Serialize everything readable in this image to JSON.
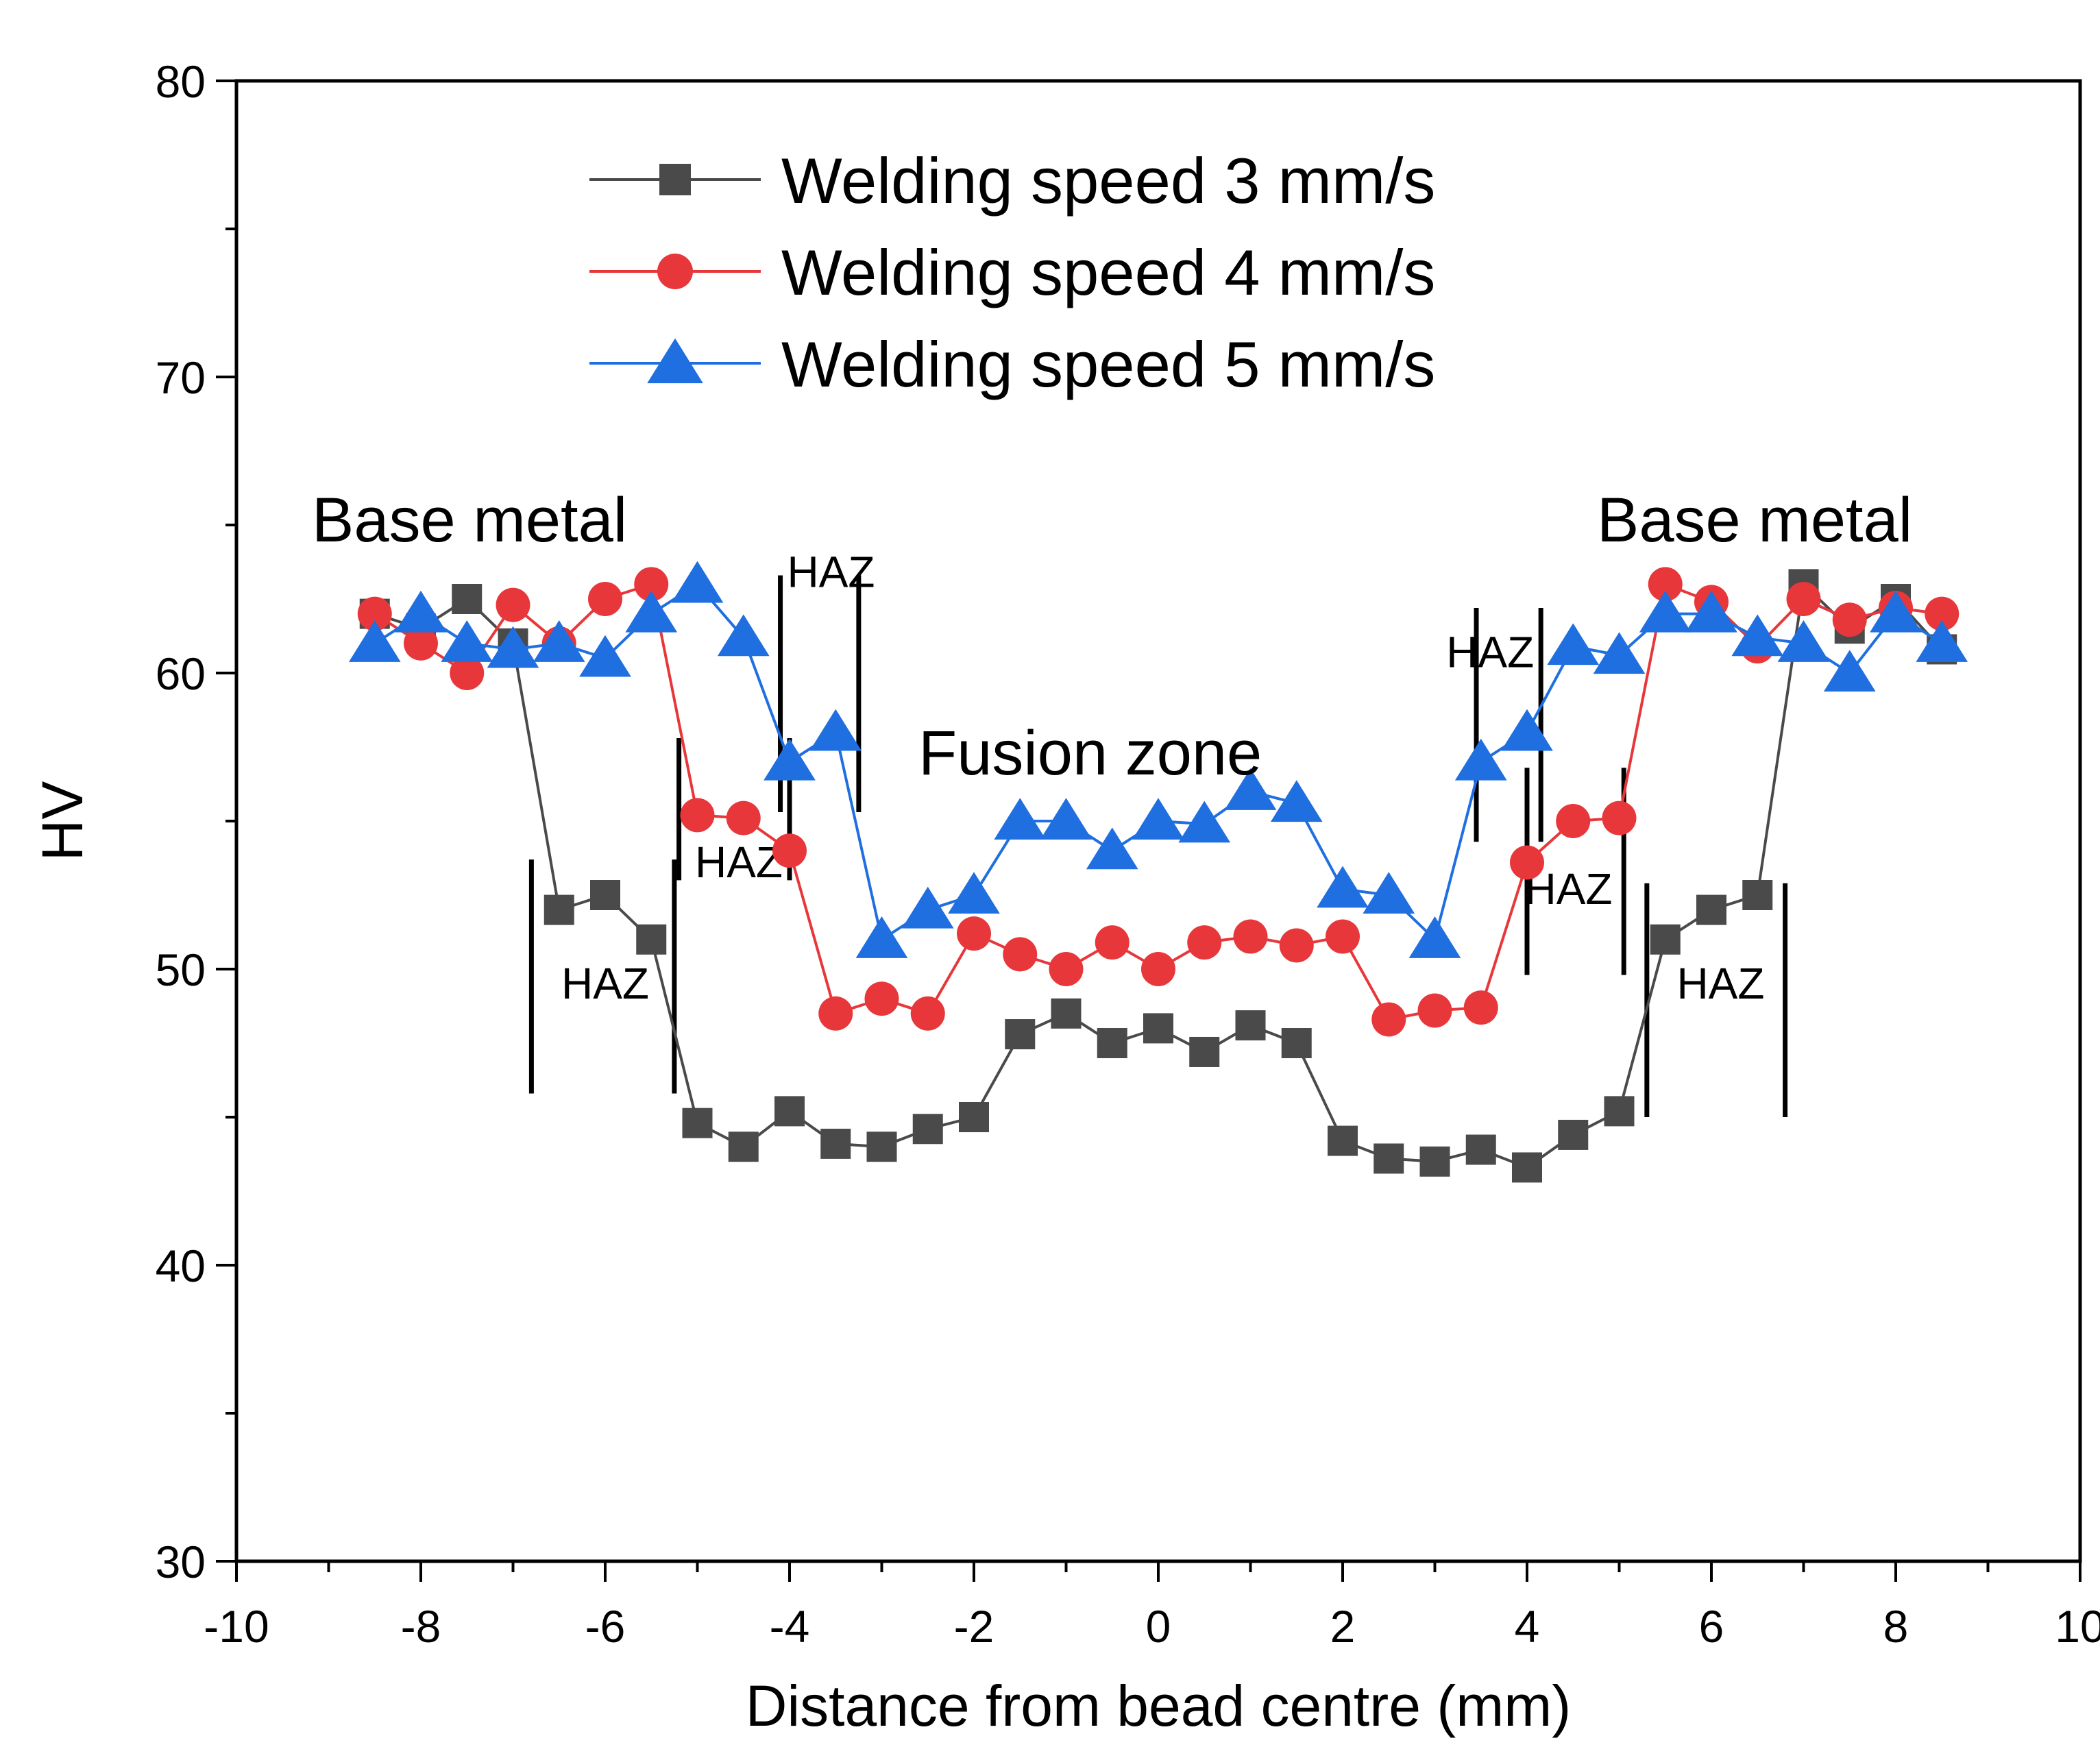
{
  "chart_data": {
    "type": "line",
    "title": "",
    "xlabel": "Distance from bead centre (mm)",
    "ylabel": "HV",
    "xlim": [
      -10,
      10
    ],
    "ylim": [
      30,
      80
    ],
    "xticks": [
      -10,
      -8,
      -6,
      -4,
      -2,
      0,
      2,
      4,
      6,
      8,
      10
    ],
    "yticks": [
      30,
      40,
      50,
      60,
      70,
      80
    ],
    "x": [
      -8.5,
      -8,
      -7.5,
      -7,
      -6.5,
      -6,
      -5.5,
      -5,
      -4.5,
      -4,
      -3.5,
      -3,
      -2.5,
      -2,
      -1.5,
      -1,
      -0.5,
      0,
      0.5,
      1,
      1.5,
      2,
      2.5,
      3,
      3.5,
      4,
      4.5,
      5,
      5.5,
      6,
      6.5,
      7,
      7.5,
      8,
      8.5
    ],
    "series": [
      {
        "name": "Welding speed 3 mm/s",
        "color": "#4a4a4a",
        "marker": "square",
        "values": [
          62,
          61.5,
          62.5,
          61,
          52,
          52.5,
          51,
          44.8,
          44,
          45.2,
          44.1,
          44,
          44.6,
          45,
          47.8,
          48.5,
          47.5,
          48,
          47.2,
          48.1,
          47.5,
          44.2,
          43.6,
          43.5,
          43.9,
          43.3,
          44.4,
          45.2,
          51,
          52,
          52.5,
          63,
          61.5,
          62.5,
          60.8
        ]
      },
      {
        "name": "Welding speed 4 mm/s",
        "color": "#e8373a",
        "marker": "circle",
        "values": [
          62,
          61,
          60,
          62.3,
          61,
          62.5,
          63,
          55.2,
          55.1,
          54,
          48.5,
          49,
          48.5,
          51.2,
          50.5,
          50,
          50.9,
          50,
          50.9,
          51.1,
          50.8,
          51.1,
          48.3,
          48.6,
          48.7,
          53.6,
          55,
          55.1,
          63,
          62.4,
          60.9,
          62.5,
          61.8,
          62.2,
          62
        ]
      },
      {
        "name": "Welding speed 5 mm/s",
        "color": "#1f6fe0",
        "marker": "triangle",
        "values": [
          61,
          62,
          61,
          60.8,
          61,
          60.5,
          62,
          63,
          61.2,
          57,
          58,
          51,
          52,
          52.5,
          55,
          55,
          54,
          55,
          54.9,
          56,
          55.6,
          52.7,
          52.5,
          51,
          57,
          58,
          60.9,
          60.6,
          62,
          62,
          61.2,
          61,
          60,
          62,
          61
        ]
      }
    ],
    "annotations": {
      "base_metal_left": "Base metal",
      "base_metal_right": "Base metal",
      "fusion_zone": "Fusion zone",
      "haz": "HAZ"
    },
    "haz_markers": [
      {
        "x1": -6.8,
        "x2": -5.25,
        "y_low": 45.8,
        "y_high": 53.7,
        "label_x": -6.0,
        "label_y": 49.0
      },
      {
        "x1": -5.2,
        "x2": -4.0,
        "y_low": 53.0,
        "y_high": 57.8,
        "label_x": -4.55,
        "label_y": 53.1
      },
      {
        "x1": -4.1,
        "x2": -3.25,
        "y_low": 55.3,
        "y_high": 63.3,
        "label_x": -3.55,
        "label_y": 62.9
      },
      {
        "x1": 3.45,
        "x2": 4.15,
        "y_low": 54.3,
        "y_high": 62.2,
        "label_x": 3.6,
        "label_y": 60.2
      },
      {
        "x1": 4.0,
        "x2": 5.05,
        "y_low": 49.8,
        "y_high": 56.8,
        "label_x": 4.45,
        "label_y": 52.2
      },
      {
        "x1": 5.3,
        "x2": 6.8,
        "y_low": 45.0,
        "y_high": 52.9,
        "label_x": 6.1,
        "label_y": 49.0
      }
    ]
  }
}
